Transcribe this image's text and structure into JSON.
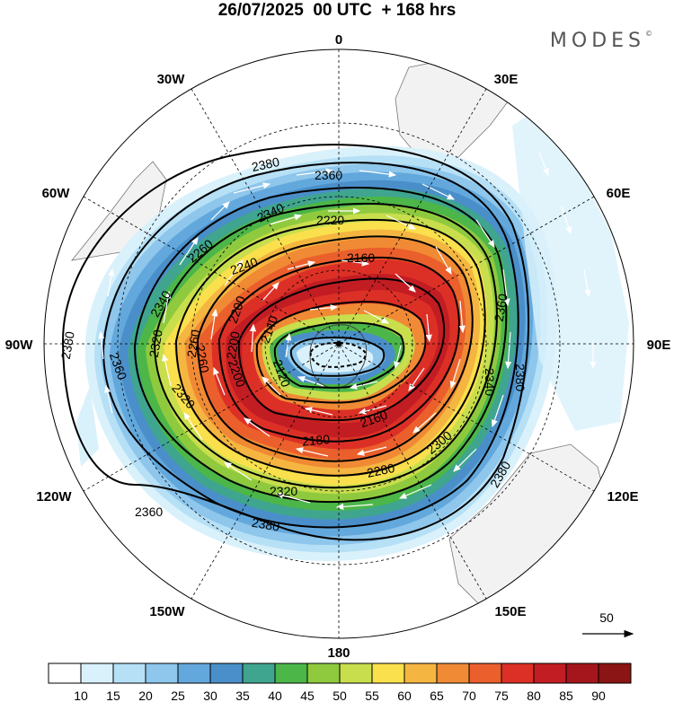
{
  "header": {
    "title": "26/07/2025  00 UTC  + 168 hrs",
    "brand": "MODES",
    "brand_mark": "©"
  },
  "map": {
    "type": "polar-stereographic",
    "center": "South Pole",
    "longitude_labels": [
      "0",
      "30E",
      "60E",
      "90E",
      "120E",
      "150E",
      "180",
      "150W",
      "120W",
      "90W",
      "60W",
      "30W"
    ],
    "height_contours": [
      "2120",
      "2140",
      "2160",
      "2180",
      "2200",
      "2220",
      "2240",
      "2260",
      "2280",
      "2300",
      "2320",
      "2340",
      "2360",
      "2380"
    ],
    "contour_labels": [
      {
        "key": "c2380a",
        "text": "2380"
      },
      {
        "key": "c2360a",
        "text": "2360"
      },
      {
        "key": "c2340a",
        "text": "2340"
      },
      {
        "key": "c2220a",
        "text": "2220"
      },
      {
        "key": "c2260a",
        "text": "2260"
      },
      {
        "key": "c2240a",
        "text": "2240"
      },
      {
        "key": "c2160a",
        "text": "2160"
      },
      {
        "key": "c2340b",
        "text": "2340"
      },
      {
        "key": "c2200a",
        "text": "2200"
      },
      {
        "key": "c2140a",
        "text": "2140"
      },
      {
        "key": "c2320a",
        "text": "2320"
      },
      {
        "key": "c2260b",
        "text": "2260"
      },
      {
        "key": "c2200b",
        "text": "2200"
      },
      {
        "key": "c2120a",
        "text": "2120"
      },
      {
        "key": "c2380b",
        "text": "2380"
      },
      {
        "key": "c2360b",
        "text": "2360"
      },
      {
        "key": "c2320b",
        "text": "2320"
      },
      {
        "key": "c2260c",
        "text": "2260"
      },
      {
        "key": "c2200c",
        "text": "2200"
      },
      {
        "key": "c2180a",
        "text": "2180"
      },
      {
        "key": "c2160b",
        "text": "2160"
      },
      {
        "key": "c2300a",
        "text": "2300"
      },
      {
        "key": "c2280a",
        "text": "2280"
      },
      {
        "key": "c2320c",
        "text": "2320"
      },
      {
        "key": "c2360c",
        "text": "2360"
      },
      {
        "key": "c2380c",
        "text": "2380"
      },
      {
        "key": "c2340c",
        "text": "2340"
      },
      {
        "key": "c2380d",
        "text": "2380"
      },
      {
        "key": "c2380e",
        "text": "2380"
      },
      {
        "key": "c2360d",
        "text": "2360"
      }
    ]
  },
  "vector_reference": {
    "label": "50"
  },
  "colorbar": {
    "ticks": [
      "10",
      "15",
      "20",
      "25",
      "30",
      "35",
      "40",
      "45",
      "50",
      "55",
      "60",
      "65",
      "70",
      "75",
      "80",
      "85",
      "90"
    ],
    "colors": [
      "#ffffff",
      "#d9f1fb",
      "#b6e0f6",
      "#8ec6ec",
      "#63a8dc",
      "#4a8fc9",
      "#3fa58f",
      "#4cb649",
      "#8fca3e",
      "#c8de4d",
      "#f9e04c",
      "#f5b641",
      "#f08a34",
      "#ea5f2c",
      "#dc3026",
      "#c21d23",
      "#a4161c",
      "#8b1414"
    ]
  }
}
